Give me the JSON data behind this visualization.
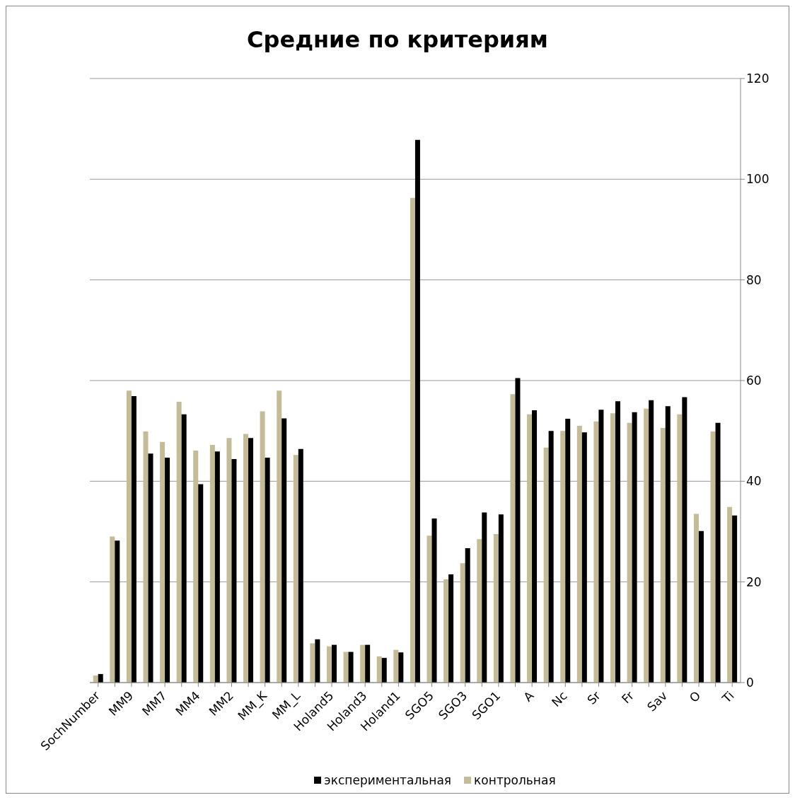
{
  "chart_data": {
    "type": "bar",
    "title": "Средние по критериям",
    "categories": [
      "SochNumber",
      null,
      "MM9",
      null,
      "MM7",
      null,
      "MM4",
      null,
      "MM2",
      null,
      "MM_K",
      null,
      "MM_L",
      null,
      "Holand5",
      null,
      "Holand3",
      null,
      "Holand1",
      null,
      "SGO5",
      null,
      "SGO3",
      null,
      "SGO1",
      null,
      "A",
      null,
      "Nc",
      null,
      "Sr",
      null,
      "Fr",
      null,
      "Sav",
      null,
      "O",
      null,
      "Ti"
    ],
    "series": [
      {
        "name": "контрольная",
        "color": "#c4bc96",
        "values": [
          1.4,
          29.0,
          58.0,
          49.9,
          47.8,
          55.8,
          46.1,
          47.2,
          48.6,
          49.4,
          53.9,
          58.0,
          45.2,
          7.8,
          7.2,
          6.1,
          7.5,
          5.2,
          6.5,
          96.3,
          29.2,
          20.5,
          23.7,
          28.5,
          29.5,
          57.3,
          53.3,
          46.7,
          50.0,
          51.0,
          51.9,
          53.5,
          51.6,
          54.4,
          50.6,
          53.3,
          33.5,
          49.9,
          34.9
        ]
      },
      {
        "name": "экспериментальная",
        "color": "#000000",
        "values": [
          1.7,
          28.2,
          56.9,
          45.5,
          44.7,
          53.3,
          39.4,
          45.9,
          44.4,
          48.6,
          44.7,
          52.5,
          46.4,
          8.6,
          7.5,
          6.1,
          7.5,
          4.9,
          6.0,
          107.8,
          32.6,
          21.5,
          26.7,
          33.8,
          33.4,
          60.5,
          54.1,
          50.0,
          52.4,
          49.7,
          54.2,
          55.9,
          53.7,
          56.1,
          54.9,
          56.7,
          30.1,
          51.6,
          33.2
        ]
      }
    ],
    "ylim": [
      0,
      120
    ],
    "yticks": [
      0,
      20,
      40,
      60,
      80,
      100,
      120
    ],
    "grid": "y",
    "legend": "bottom"
  }
}
